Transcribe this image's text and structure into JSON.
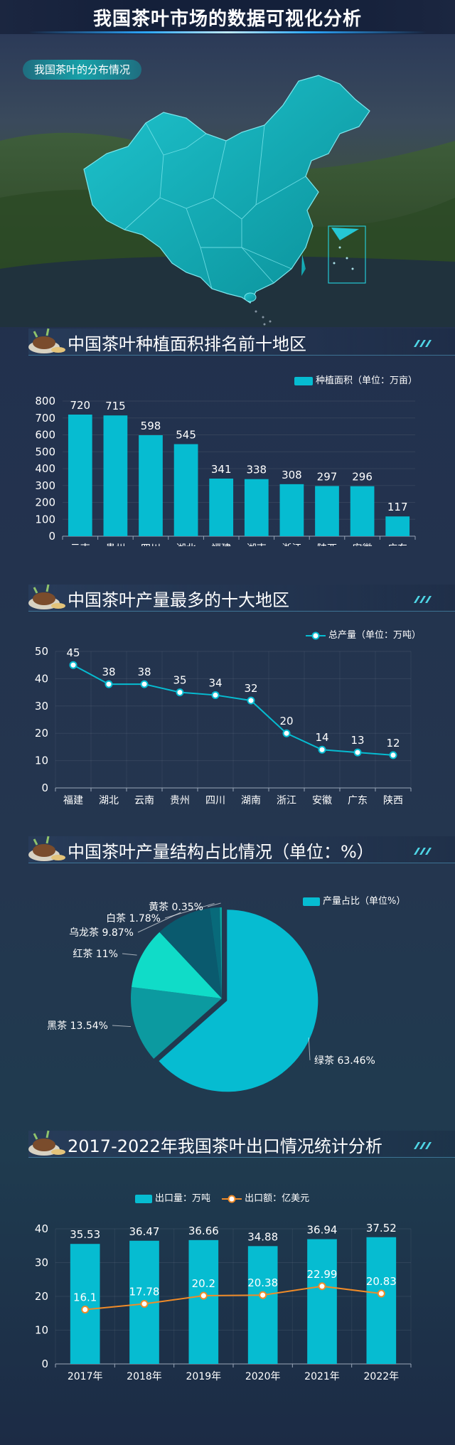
{
  "header": {
    "title": "我国茶叶市场的数据可视化分析"
  },
  "map": {
    "label": "我国茶叶的分布情况"
  },
  "sections": {
    "area": "中国茶叶种植面积排名前十地区",
    "production": "中国茶叶产量最多的十大地区",
    "structure": "中国茶叶产量结构占比情况（单位：%）",
    "export": "2017-2022年我国茶叶出口情况统计分析"
  },
  "colors": {
    "teal": "#06bcd1",
    "orange": "#f08b28",
    "axis": "#9aa6b8"
  },
  "chart_data": [
    {
      "type": "bar",
      "categories": [
        "云南",
        "贵州",
        "四川",
        "湖北",
        "福建",
        "湖南",
        "浙江",
        "陕西",
        "安徽",
        "广东"
      ],
      "series": [
        {
          "name": "种植面积（单位：万亩）",
          "values": [
            720,
            715,
            598,
            545,
            341,
            338,
            308,
            297,
            296,
            117
          ]
        }
      ],
      "ylim": [
        0,
        800
      ],
      "yticks": [
        0,
        100,
        200,
        300,
        400,
        500,
        600,
        700,
        800
      ]
    },
    {
      "type": "line",
      "categories": [
        "福建",
        "湖北",
        "云南",
        "贵州",
        "四川",
        "湖南",
        "浙江",
        "安徽",
        "广东",
        "陕西"
      ],
      "series": [
        {
          "name": "总产量（单位：万吨）",
          "values": [
            45,
            38,
            38,
            35,
            34,
            32,
            20,
            14,
            13,
            12
          ]
        }
      ],
      "ylim": [
        0,
        50
      ],
      "yticks": [
        0,
        10,
        20,
        30,
        40,
        50
      ]
    },
    {
      "type": "pie",
      "legend": "产量占比（单位%）",
      "slices": [
        {
          "name": "绿茶",
          "value": 63.46,
          "label": "绿茶 63.46%",
          "color": "#06bcd1"
        },
        {
          "name": "黑茶",
          "value": 13.54,
          "label": "黑茶 13.54%",
          "color": "#0c9aa0"
        },
        {
          "name": "红茶",
          "value": 11,
          "label": "红茶 11%",
          "color": "#10dcc8"
        },
        {
          "name": "乌龙茶",
          "value": 9.87,
          "label": "乌龙茶 9.87%",
          "color": "#0a5a6e"
        },
        {
          "name": "白茶",
          "value": 1.78,
          "label": "白茶 1.78%",
          "color": "#086a7a"
        },
        {
          "name": "黄茶",
          "value": 0.35,
          "label": "黄茶 0.35%",
          "color": "#0ba6a0"
        }
      ]
    },
    {
      "type": "bar+line",
      "categories": [
        "2017年",
        "2018年",
        "2019年",
        "2020年",
        "2021年",
        "2022年"
      ],
      "series": [
        {
          "name": "出口量：万吨",
          "type": "bar",
          "values": [
            35.53,
            36.47,
            36.66,
            34.88,
            36.94,
            37.52
          ]
        },
        {
          "name": "出口额：亿美元",
          "type": "line",
          "values": [
            16.1,
            17.78,
            20.2,
            20.38,
            22.99,
            20.83
          ]
        }
      ],
      "ylim": [
        0,
        40
      ],
      "yticks": [
        0,
        10,
        20,
        30,
        40
      ]
    }
  ]
}
